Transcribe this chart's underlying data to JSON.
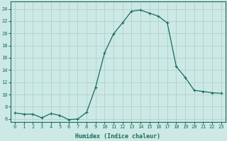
{
  "x": [
    0,
    1,
    2,
    3,
    4,
    5,
    6,
    7,
    8,
    9,
    10,
    11,
    12,
    13,
    14,
    15,
    16,
    17,
    18,
    19,
    20,
    21,
    22,
    23
  ],
  "y": [
    7.0,
    6.8,
    6.8,
    6.2,
    6.9,
    6.6,
    5.9,
    6.0,
    7.1,
    11.2,
    16.8,
    19.9,
    21.7,
    23.6,
    23.8,
    23.3,
    22.8,
    21.7,
    14.6,
    12.8,
    10.7,
    10.5,
    10.3,
    10.2
  ],
  "line_color": "#1a6b5a",
  "marker": "+",
  "marker_size": 3,
  "marker_linewidth": 0.8,
  "line_width": 0.9,
  "bg_color": "#cce9e5",
  "grid_color": "#b0d0cc",
  "xlabel": "Humidex (Indice chaleur)",
  "ylabel_ticks": [
    6,
    8,
    10,
    12,
    14,
    16,
    18,
    20,
    22,
    24
  ],
  "xlim": [
    -0.5,
    23.5
  ],
  "ylim": [
    5.5,
    25.2
  ],
  "tick_color": "#1a6b5a",
  "spine_color": "#1a6b5a",
  "tick_fontsize": 5.0,
  "xlabel_fontsize": 6.0,
  "xlabel_fontweight": "bold"
}
